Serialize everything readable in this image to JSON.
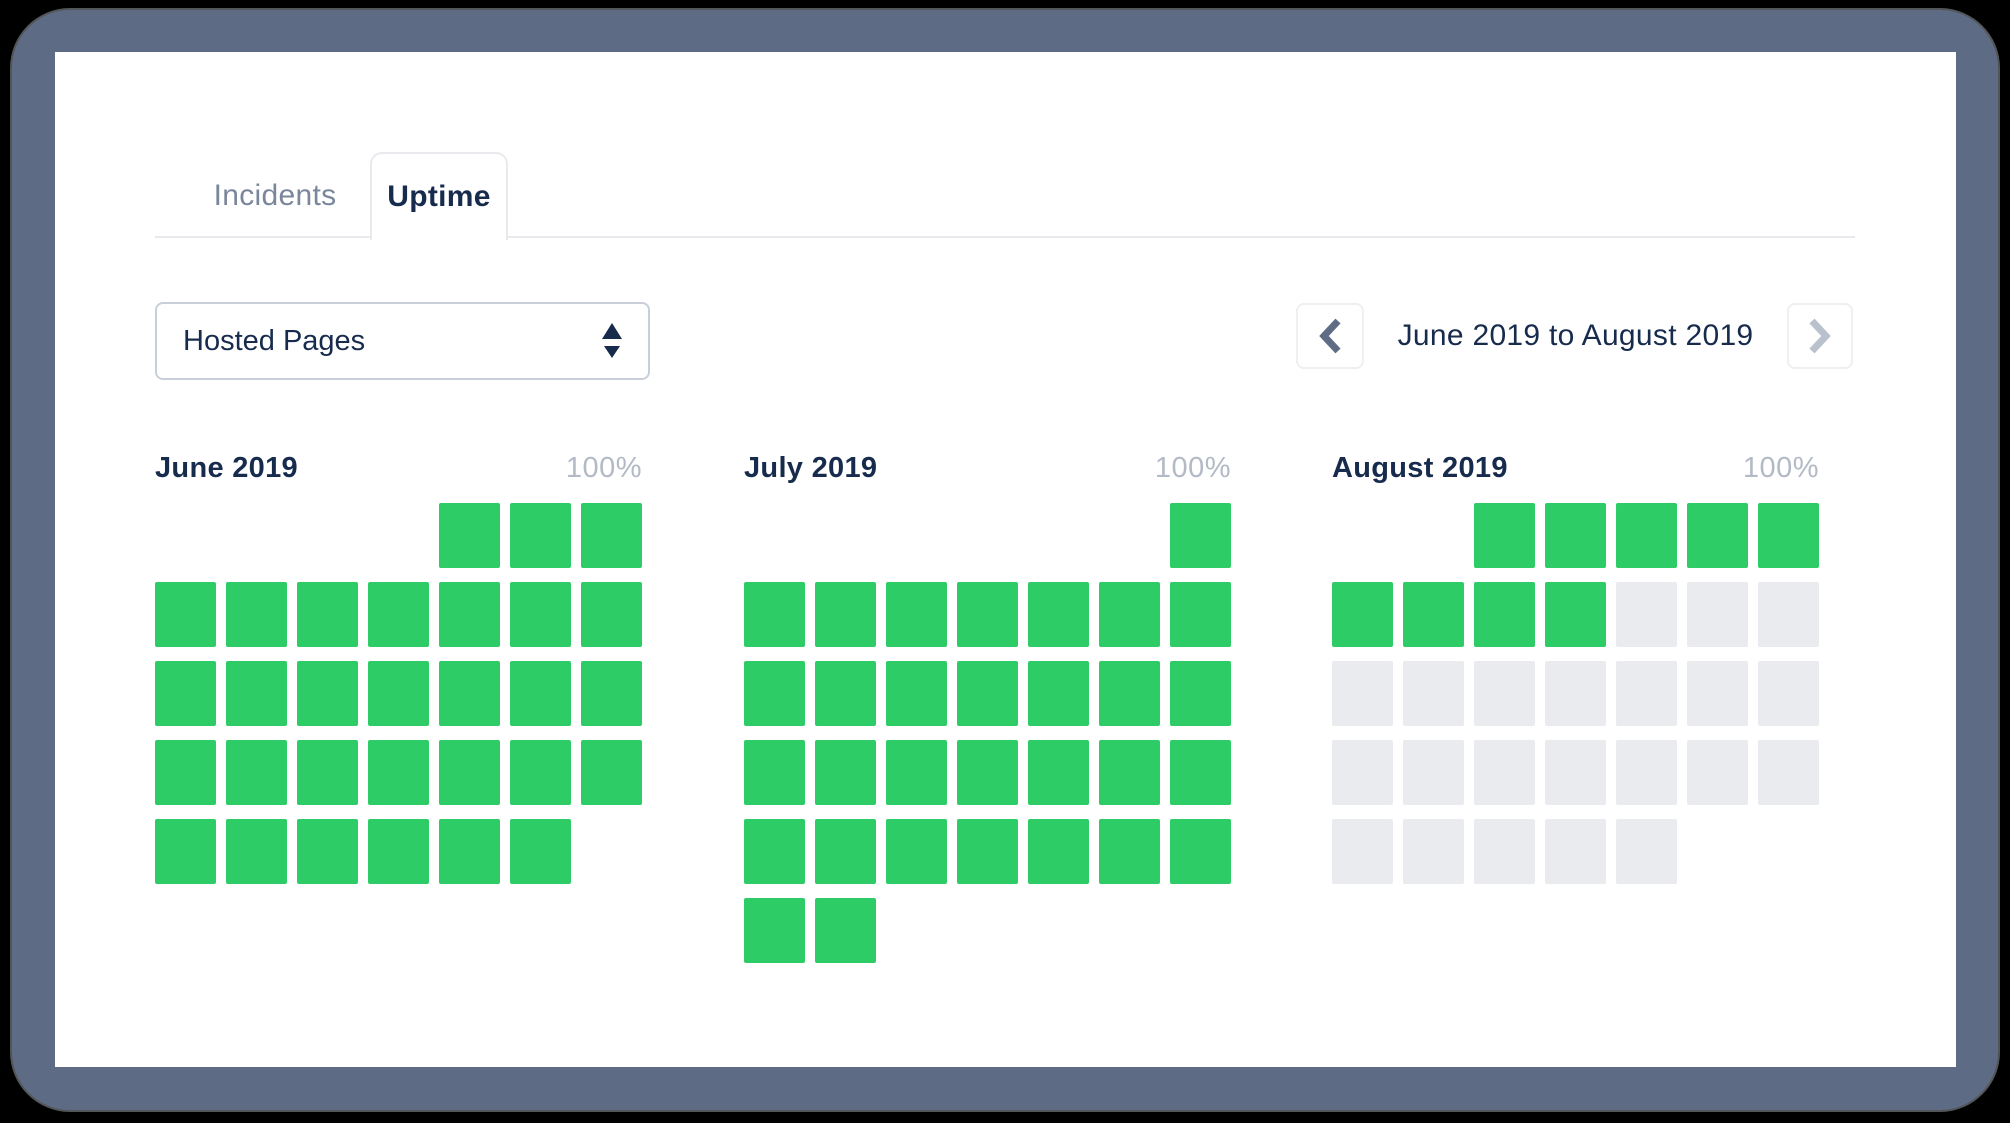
{
  "tabs": [
    {
      "label": "Incidents",
      "active": false
    },
    {
      "label": "Uptime",
      "active": true
    }
  ],
  "filter": {
    "selected_value": "Hosted Pages"
  },
  "nav": {
    "range_label": "June 2019 to August 2019",
    "prev_enabled": true,
    "next_enabled": false
  },
  "months": [
    {
      "name": "June 2019",
      "uptime_label": "100%",
      "leading_empty": 4,
      "days": 30,
      "up_days": 30
    },
    {
      "name": "July 2019",
      "uptime_label": "100%",
      "leading_empty": 6,
      "days": 31,
      "up_days": 31
    },
    {
      "name": "August 2019",
      "uptime_label": "100%",
      "leading_empty": 2,
      "days": 31,
      "up_days": 9
    }
  ],
  "colors": {
    "frame": "#5d6b84",
    "uptime_green": "#2ecc66",
    "future_gray": "#eaebef",
    "heading_navy": "#172b4d",
    "inactive_tab": "#7a869a",
    "percent_label": "#b3bac5"
  }
}
